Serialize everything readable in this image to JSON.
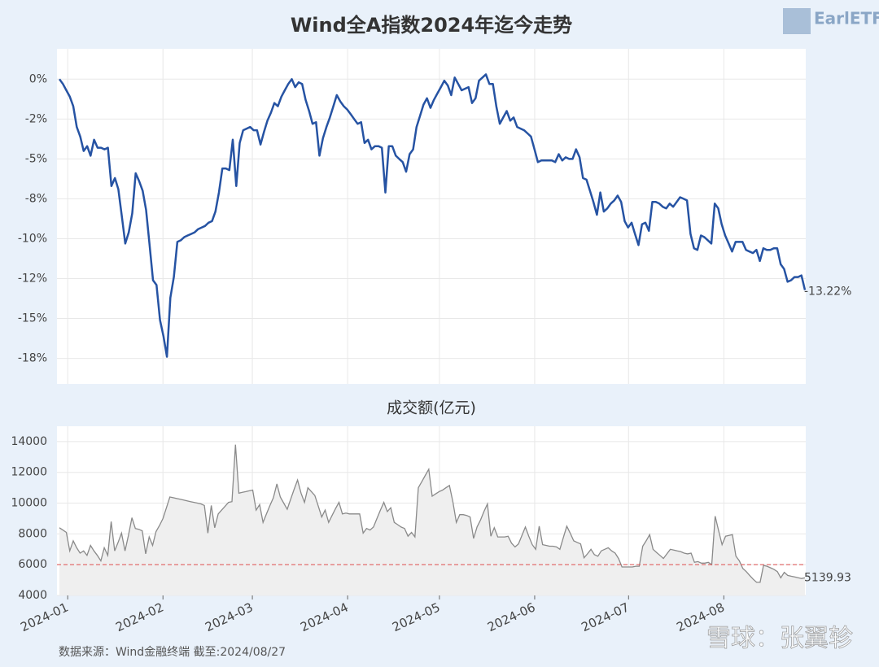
{
  "chart_data": [
    {
      "type": "line",
      "title": "Wind全A指数2024年迄今走势",
      "color": "#2653a3",
      "end_label": "-13.22%",
      "ylim": [
        -19.1,
        1.9
      ],
      "yticks": [
        {
          "value": 0,
          "label": "0%"
        },
        {
          "value": -2.5,
          "label": "-2%"
        },
        {
          "value": -5,
          "label": "-5%"
        },
        {
          "value": -7.5,
          "label": "-8%"
        },
        {
          "value": -10,
          "label": "-10%"
        },
        {
          "value": -12.5,
          "label": "-12%"
        },
        {
          "value": -15,
          "label": "-15%"
        },
        {
          "value": -17.5,
          "label": "-18%"
        }
      ],
      "grid": true,
      "values": [
        0,
        -0.3,
        -0.7,
        -1.1,
        -1.7,
        -3.0,
        -3.6,
        -4.5,
        -4.2,
        -4.8,
        -3.8,
        -4.3,
        -4.3,
        -4.4,
        -4.3,
        -6.7,
        -6.2,
        -6.9,
        -8.6,
        -10.3,
        -9.6,
        -8.4,
        -5.9,
        -6.4,
        -7.0,
        -8.2,
        -10.4,
        -12.6,
        -12.9,
        -15.1,
        -16.1,
        -17.4,
        -13.7,
        -12.4,
        -10.2,
        -10.1,
        -9.9,
        -9.8,
        -9.7,
        -9.6,
        -9.4,
        -9.3,
        -9.2,
        -9.0,
        -8.9,
        -8.3,
        -7.1,
        -5.6,
        -5.6,
        -5.7,
        -3.8,
        -6.7,
        -4.0,
        -3.2,
        -3.1,
        -3.0,
        -3.2,
        -3.2,
        -4.1,
        -3.3,
        -2.6,
        -2.1,
        -1.5,
        -1.7,
        -1.1,
        -0.7,
        -0.3,
        0,
        -0.5,
        -0.2,
        -0.3,
        -1.3,
        -2.0,
        -2.8,
        -2.7,
        -4.8,
        -3.7,
        -3.0,
        -2.4,
        -1.7,
        -1.0,
        -1.4,
        -1.7,
        -1.9,
        -2.2,
        -2.5,
        -2.8,
        -2.7,
        -4.0,
        -3.8,
        -4.4,
        -4.2,
        -4.2,
        -4.3,
        -7.1,
        -4.2,
        -4.2,
        -4.8,
        -5.0,
        -5.2,
        -5.8,
        -4.7,
        -4.4,
        -3.0,
        -2.3,
        -1.6,
        -1.2,
        -1.8,
        -1.3,
        -0.9,
        -0.5,
        -0.1,
        -0.4,
        -1.0,
        0.1,
        -0.3,
        -0.7,
        -0.6,
        -0.5,
        -1.5,
        -1.2,
        -0.1,
        0.1,
        0.3,
        -0.3,
        -0.3,
        -1.7,
        -2.8,
        -2.4,
        -2.0,
        -2.6,
        -2.4,
        -3.0,
        -3.1,
        -3.2,
        -3.4,
        -3.6,
        -4.4,
        -5.2,
        -5.1,
        -5.1,
        -5.1,
        -5.1,
        -5.2,
        -4.7,
        -5.1,
        -4.9,
        -5.0,
        -5.0,
        -4.4,
        -4.9,
        -6.2,
        -6.3,
        -7.0,
        -7.7,
        -8.5,
        -7.1,
        -8.3,
        -8.1,
        -7.8,
        -7.6,
        -7.3,
        -7.7,
        -8.9,
        -9.3,
        -9.0,
        -9.7,
        -10.4,
        -9.1,
        -9.0,
        -9.5,
        -7.7,
        -7.7,
        -7.8,
        -8.0,
        -8.1,
        -7.8,
        -8.0,
        -7.7,
        -7.4,
        -7.5,
        -7.6,
        -9.7,
        -10.6,
        -10.7,
        -9.8,
        -9.9,
        -10.1,
        -10.3,
        -7.8,
        -8.1,
        -9.1,
        -9.8,
        -10.3,
        -10.8,
        -10.2,
        -10.2,
        -10.2,
        -10.7,
        -10.8,
        -10.9,
        -10.7,
        -11.4,
        -10.6,
        -10.7,
        -10.7,
        -10.6,
        -10.6,
        -11.6,
        -11.9,
        -12.7,
        -12.6,
        -12.4,
        -12.4,
        -12.3,
        -13.22
      ]
    },
    {
      "type": "area",
      "title": "成交额(亿元)",
      "color": "#8a8a8a",
      "fill": "#efefef",
      "ylim": [
        4000,
        15000
      ],
      "yticks": [
        4000,
        6000,
        8000,
        10000,
        12000,
        14000
      ],
      "grid": true,
      "ref_line": 6000,
      "ref_color": "#e06060",
      "xticks": [
        {
          "value": 2.4,
          "label": "2024-01"
        },
        {
          "value": 30.0,
          "label": "2024-02"
        },
        {
          "value": 55.9,
          "label": "2024-03"
        },
        {
          "value": 83.5,
          "label": "2024-04"
        },
        {
          "value": 110.1,
          "label": "2024-05"
        },
        {
          "value": 137.7,
          "label": "2024-06"
        },
        {
          "value": 164.9,
          "label": "2024-07"
        },
        {
          "value": 192.5,
          "label": "2024-08"
        }
      ],
      "values": [
        8400,
        8250,
        8100,
        6900,
        7550,
        7100,
        6750,
        6900,
        6600,
        7250,
        6900,
        6600,
        6250,
        7100,
        6600,
        8800,
        6900,
        7450,
        8050,
        6900,
        7900,
        9050,
        8350,
        8300,
        8200,
        6700,
        7800,
        7250,
        8150,
        8550,
        9000,
        9700,
        10400,
        10350,
        10300,
        10250,
        10200,
        10150,
        10100,
        10050,
        10000,
        9950,
        9850,
        8050,
        9850,
        8400,
        9300,
        9550,
        9800,
        10050,
        10100,
        13800,
        10650,
        10700,
        10750,
        10800,
        10850,
        9550,
        9900,
        8750,
        9300,
        9850,
        10350,
        11250,
        10400,
        10000,
        9600,
        10250,
        10900,
        11500,
        10650,
        10050,
        11000,
        10750,
        10500,
        9800,
        9100,
        9550,
        8750,
        9200,
        9650,
        10050,
        9300,
        9350,
        9300,
        9300,
        9300,
        9300,
        8050,
        8350,
        8250,
        8450,
        9000,
        9550,
        10050,
        9450,
        9700,
        8750,
        8600,
        8450,
        8350,
        7850,
        8100,
        7800,
        11000,
        11400,
        11800,
        12200,
        10450,
        10600,
        10750,
        10850,
        11000,
        11150,
        10100,
        8750,
        9250,
        9250,
        9200,
        9100,
        7700,
        8450,
        8900,
        9450,
        9950,
        7850,
        8400,
        7800,
        7800,
        7800,
        7850,
        7400,
        7150,
        7350,
        7900,
        8450,
        7850,
        7300,
        7000,
        8500,
        7300,
        7250,
        7200,
        7200,
        7150,
        7000,
        7750,
        8500,
        8050,
        7550,
        7450,
        7350,
        6450,
        6700,
        7000,
        6650,
        6550,
        6900,
        7000,
        7100,
        6900,
        6750,
        6400,
        5850,
        5850,
        5850,
        5850,
        5900,
        5900,
        7200,
        7550,
        7950,
        7000,
        6800,
        6600,
        6400,
        6700,
        7000,
        6950,
        6900,
        6850,
        6750,
        6700,
        6750,
        6150,
        6200,
        6100,
        6100,
        6150,
        6000,
        9150,
        8200,
        7300,
        7850,
        7900,
        7950,
        6550,
        6250,
        5750,
        5550,
        5300,
        5050,
        4850,
        4850,
        5950,
        5900,
        5800,
        5700,
        5550,
        5150,
        5500,
        5300,
        5250,
        5200,
        5150,
        5100,
        5139.93
      ]
    }
  ],
  "source": "数据来源：Wind金融终端 截至:2024/08/27",
  "logo": "EarlETF",
  "watermark": "雪球：张翼轸"
}
